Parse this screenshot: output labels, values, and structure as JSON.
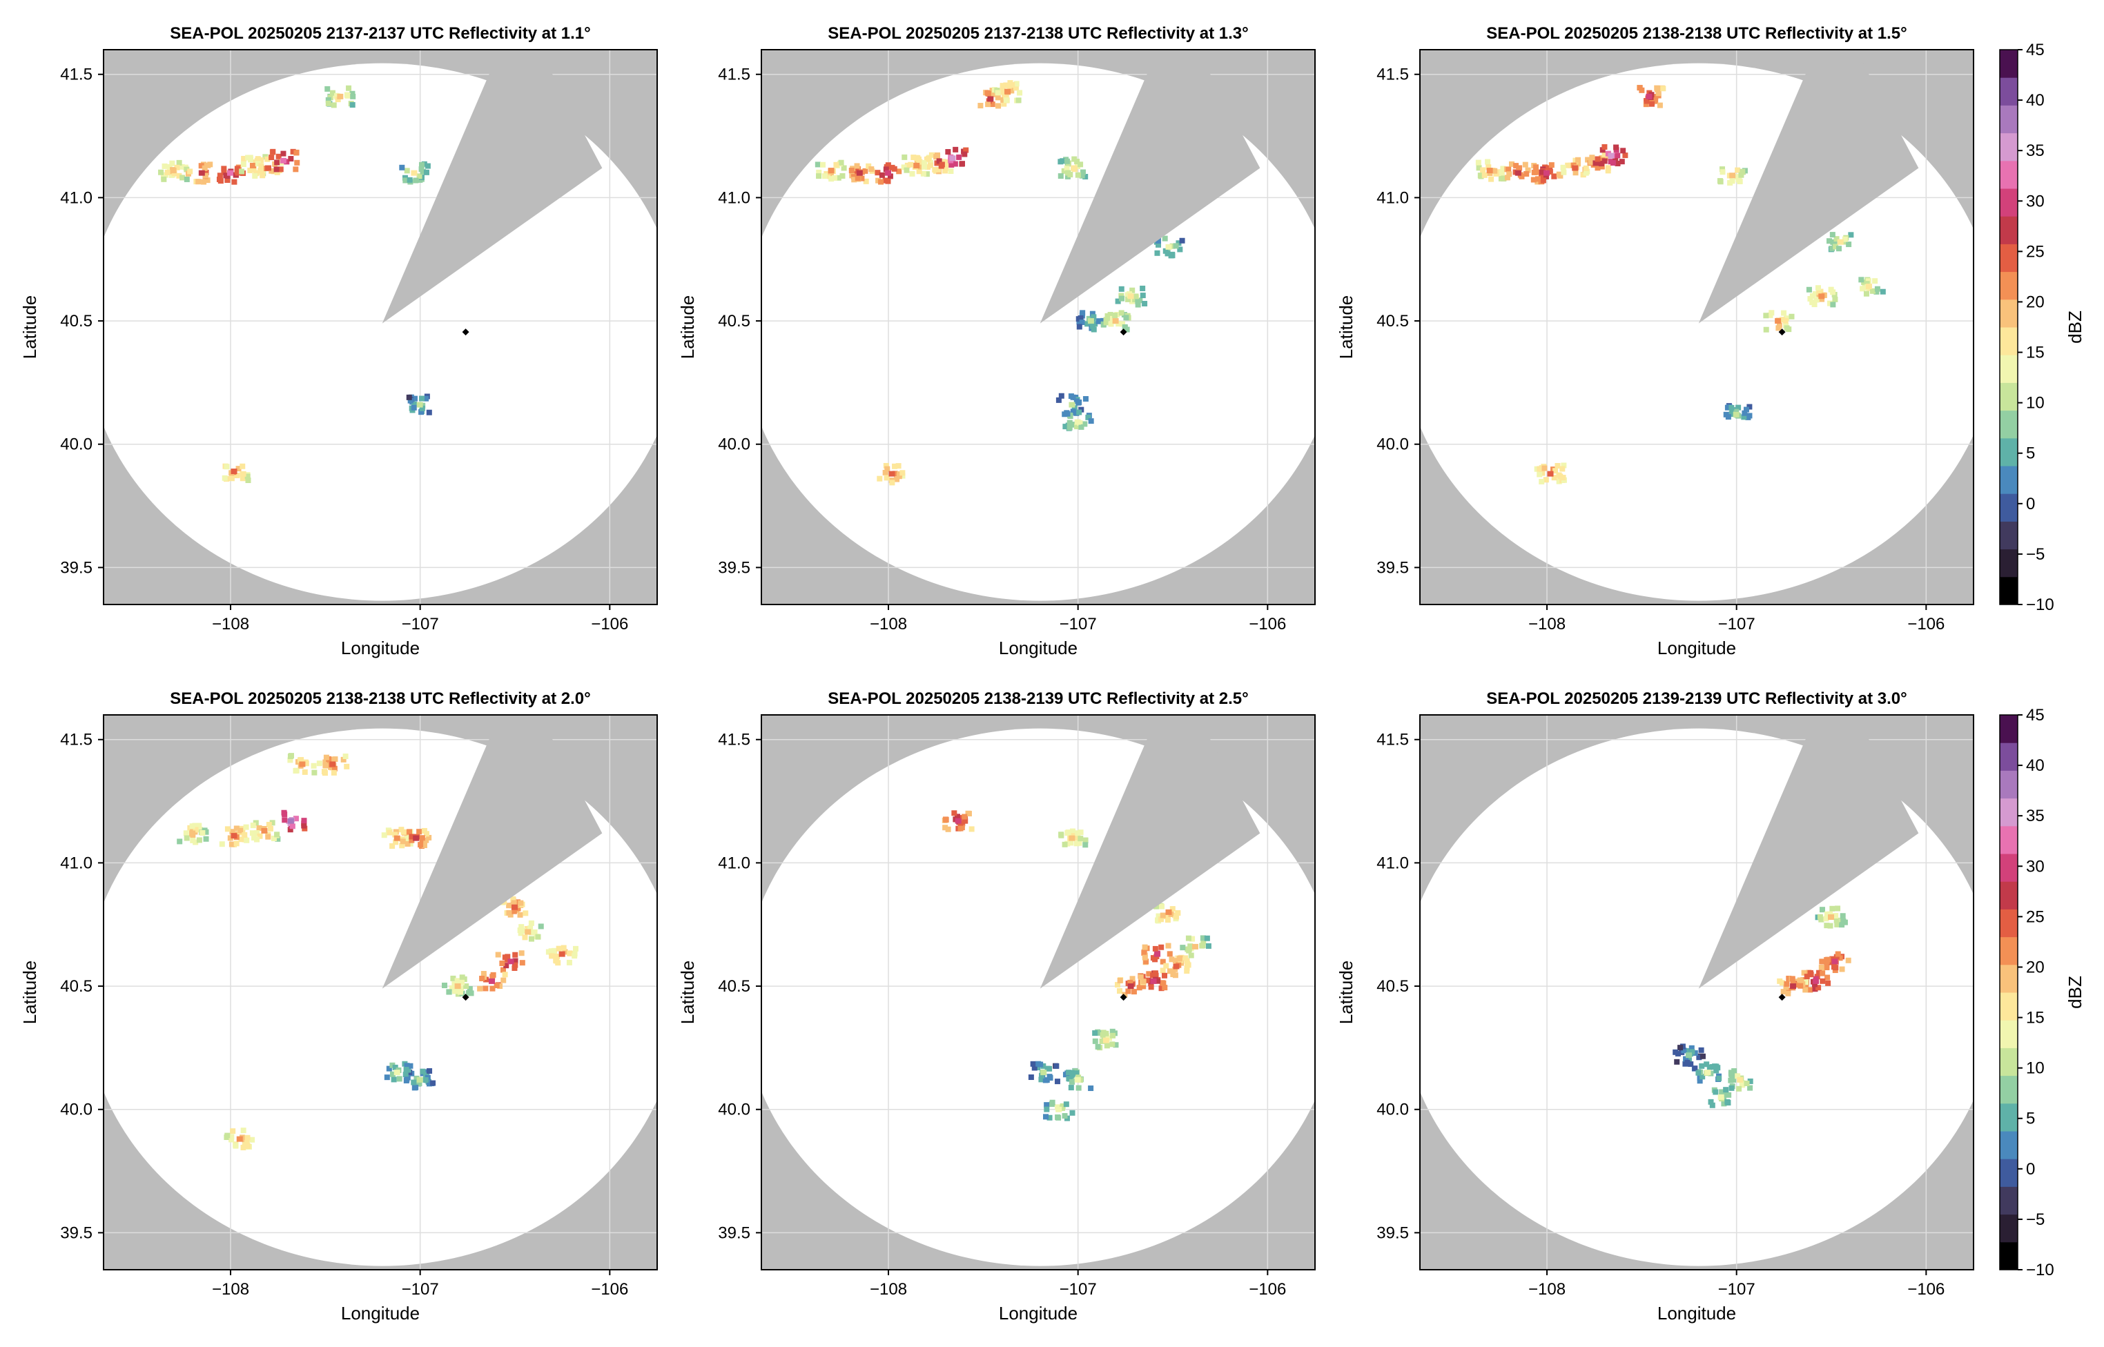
{
  "figure": {
    "colorbar_label": "dBZ",
    "colorbar_ticks": [
      -10,
      -5,
      0,
      5,
      10,
      15,
      20,
      25,
      30,
      35,
      40,
      45
    ],
    "colors": {
      "mask_gray": "#bcbcbc",
      "grid": "#dedede",
      "radar_marker": "#000000",
      "colormap": [
        "#000000",
        "#2a1f33",
        "#413a5e",
        "#3f5b9e",
        "#4a89bd",
        "#5fb2a8",
        "#93cfa3",
        "#c8e59b",
        "#f1f6b0",
        "#fde79b",
        "#f9c27b",
        "#f39055",
        "#e35e43",
        "#c23a4a",
        "#d2417a",
        "#e872b1",
        "#d59ad0",
        "#a979bd",
        "#7c4d9c",
        "#4a1150"
      ]
    },
    "radar_site": {
      "lon": -106.76,
      "lat": 40.455
    },
    "range_radius_deg": 1.09,
    "range_center": {
      "lon": -107.2,
      "lat": 40.455
    },
    "blocked_sector": [
      [
        -107.2,
        40.49
      ],
      [
        -106.62,
        41.53
      ],
      [
        -106.58,
        41.57
      ],
      [
        -106.35,
        41.57
      ],
      [
        -106.04,
        41.12
      ],
      [
        -107.2,
        40.49
      ]
    ]
  },
  "chart_data": [
    {
      "type": "heatmap",
      "title": "SEA-POL 20250205 2137-2137 UTC Reflectivity at 1.1°",
      "xlabel": "Longitude",
      "ylabel": "Latitude",
      "xlim": [
        -108.67,
        -105.75
      ],
      "ylim": [
        39.35,
        41.6
      ],
      "xticks": [
        "−108",
        "−107",
        "−106"
      ],
      "yticks": [
        "39.5",
        "40.0",
        "40.5",
        "41.0",
        "41.5"
      ],
      "grid": true,
      "echoes": [
        {
          "lon": -108.3,
          "lat": 41.11,
          "dbz": 20
        },
        {
          "lon": -108.15,
          "lat": 41.1,
          "dbz": 26
        },
        {
          "lon": -108.0,
          "lat": 41.1,
          "dbz": 32
        },
        {
          "lon": -107.88,
          "lat": 41.13,
          "dbz": 22
        },
        {
          "lon": -107.8,
          "lat": 41.12,
          "dbz": 24
        },
        {
          "lon": -107.72,
          "lat": 41.15,
          "dbz": 33
        },
        {
          "lon": -107.42,
          "lat": 41.41,
          "dbz": 18
        },
        {
          "lon": -107.98,
          "lat": 39.89,
          "dbz": 23
        },
        {
          "lon": -107.0,
          "lat": 40.16,
          "dbz": 10
        },
        {
          "lon": -107.03,
          "lat": 41.1,
          "dbz": 15
        }
      ]
    },
    {
      "type": "heatmap",
      "title": "SEA-POL 20250205 2137-2138 UTC Reflectivity at 1.3°",
      "xlabel": "Longitude",
      "ylabel": "Latitude",
      "xlim": [
        -108.67,
        -105.75
      ],
      "ylim": [
        39.35,
        41.6
      ],
      "xticks": [
        "−108",
        "−107",
        "−106"
      ],
      "yticks": [
        "39.5",
        "40.0",
        "40.5",
        "41.0",
        "41.5"
      ],
      "grid": true,
      "echoes": [
        {
          "lon": -108.3,
          "lat": 41.11,
          "dbz": 21
        },
        {
          "lon": -108.15,
          "lat": 41.1,
          "dbz": 27
        },
        {
          "lon": -108.0,
          "lat": 41.1,
          "dbz": 31
        },
        {
          "lon": -107.85,
          "lat": 41.13,
          "dbz": 22
        },
        {
          "lon": -107.74,
          "lat": 41.14,
          "dbz": 24
        },
        {
          "lon": -107.66,
          "lat": 41.16,
          "dbz": 36
        },
        {
          "lon": -107.46,
          "lat": 41.4,
          "dbz": 27
        },
        {
          "lon": -107.37,
          "lat": 41.43,
          "dbz": 22
        },
        {
          "lon": -107.02,
          "lat": 41.12,
          "dbz": 17
        },
        {
          "lon": -107.98,
          "lat": 39.88,
          "dbz": 24
        },
        {
          "lon": -107.03,
          "lat": 40.16,
          "dbz": 10
        },
        {
          "lon": -107.0,
          "lat": 40.09,
          "dbz": 14
        },
        {
          "lon": -106.93,
          "lat": 40.5,
          "dbz": 10
        },
        {
          "lon": -106.72,
          "lat": 40.6,
          "dbz": 16
        },
        {
          "lon": -106.52,
          "lat": 40.8,
          "dbz": 13
        },
        {
          "lon": -106.8,
          "lat": 40.5,
          "dbz": 18
        }
      ]
    },
    {
      "type": "heatmap",
      "title": "SEA-POL 20250205 2138-2138 UTC Reflectivity at 1.5°",
      "xlabel": "Longitude",
      "ylabel": "Latitude",
      "xlim": [
        -108.67,
        -105.75
      ],
      "ylim": [
        39.35,
        41.6
      ],
      "xticks": [
        "−108",
        "−107",
        "−106"
      ],
      "yticks": [
        "39.5",
        "40.0",
        "40.5",
        "41.0",
        "41.5"
      ],
      "grid": true,
      "echoes": [
        {
          "lon": -108.3,
          "lat": 41.11,
          "dbz": 22
        },
        {
          "lon": -108.15,
          "lat": 41.1,
          "dbz": 27
        },
        {
          "lon": -108.0,
          "lat": 41.1,
          "dbz": 30
        },
        {
          "lon": -107.85,
          "lat": 41.12,
          "dbz": 24
        },
        {
          "lon": -107.74,
          "lat": 41.14,
          "dbz": 26
        },
        {
          "lon": -107.66,
          "lat": 41.17,
          "dbz": 35
        },
        {
          "lon": -107.46,
          "lat": 41.41,
          "dbz": 29
        },
        {
          "lon": -107.02,
          "lat": 41.09,
          "dbz": 20
        },
        {
          "lon": -107.98,
          "lat": 39.88,
          "dbz": 24
        },
        {
          "lon": -107.0,
          "lat": 40.12,
          "dbz": 11
        },
        {
          "lon": -106.55,
          "lat": 40.6,
          "dbz": 21
        },
        {
          "lon": -106.3,
          "lat": 40.64,
          "dbz": 17
        },
        {
          "lon": -106.45,
          "lat": 40.82,
          "dbz": 16
        },
        {
          "lon": -106.78,
          "lat": 40.5,
          "dbz": 22
        }
      ]
    },
    {
      "type": "heatmap",
      "title": "SEA-POL 20250205 2138-2138 UTC Reflectivity at 2.0°",
      "xlabel": "Longitude",
      "ylabel": "Latitude",
      "xlim": [
        -108.67,
        -105.75
      ],
      "ylim": [
        39.35,
        41.6
      ],
      "xticks": [
        "−108",
        "−107",
        "−106"
      ],
      "yticks": [
        "39.5",
        "40.0",
        "40.5",
        "41.0",
        "41.5"
      ],
      "grid": true,
      "echoes": [
        {
          "lon": -108.2,
          "lat": 41.12,
          "dbz": 20
        },
        {
          "lon": -107.98,
          "lat": 41.11,
          "dbz": 24
        },
        {
          "lon": -107.82,
          "lat": 41.13,
          "dbz": 22
        },
        {
          "lon": -107.68,
          "lat": 41.17,
          "dbz": 37
        },
        {
          "lon": -107.62,
          "lat": 41.4,
          "dbz": 22
        },
        {
          "lon": -107.46,
          "lat": 41.4,
          "dbz": 25
        },
        {
          "lon": -107.12,
          "lat": 41.1,
          "dbz": 22
        },
        {
          "lon": -107.02,
          "lat": 41.1,
          "dbz": 28
        },
        {
          "lon": -106.5,
          "lat": 40.82,
          "dbz": 25
        },
        {
          "lon": -106.43,
          "lat": 40.72,
          "dbz": 20
        },
        {
          "lon": -106.52,
          "lat": 40.6,
          "dbz": 30
        },
        {
          "lon": -106.62,
          "lat": 40.52,
          "dbz": 29
        },
        {
          "lon": -106.25,
          "lat": 40.63,
          "dbz": 23
        },
        {
          "lon": -107.0,
          "lat": 40.12,
          "dbz": 11
        },
        {
          "lon": -107.12,
          "lat": 40.15,
          "dbz": 12
        },
        {
          "lon": -107.95,
          "lat": 39.88,
          "dbz": 22
        },
        {
          "lon": -106.8,
          "lat": 40.5,
          "dbz": 18
        }
      ]
    },
    {
      "type": "heatmap",
      "title": "SEA-POL 20250205 2138-2139 UTC Reflectivity at 2.5°",
      "xlabel": "Longitude",
      "ylabel": "Latitude",
      "xlim": [
        -108.67,
        -105.75
      ],
      "ylim": [
        39.35,
        41.6
      ],
      "xticks": [
        "−108",
        "−107",
        "−106"
      ],
      "yticks": [
        "39.5",
        "40.0",
        "40.5",
        "41.0",
        "41.5"
      ],
      "grid": true,
      "echoes": [
        {
          "lon": -107.63,
          "lat": 41.17,
          "dbz": 30
        },
        {
          "lon": -107.03,
          "lat": 41.1,
          "dbz": 19
        },
        {
          "lon": -106.52,
          "lat": 40.8,
          "dbz": 22
        },
        {
          "lon": -106.58,
          "lat": 40.63,
          "dbz": 30
        },
        {
          "lon": -106.48,
          "lat": 40.58,
          "dbz": 25
        },
        {
          "lon": -106.6,
          "lat": 40.52,
          "dbz": 31
        },
        {
          "lon": -106.72,
          "lat": 40.5,
          "dbz": 27
        },
        {
          "lon": -106.38,
          "lat": 40.66,
          "dbz": 18
        },
        {
          "lon": -107.0,
          "lat": 40.12,
          "dbz": 13
        },
        {
          "lon": -107.18,
          "lat": 40.15,
          "dbz": 10
        },
        {
          "lon": -107.1,
          "lat": 40.0,
          "dbz": 14
        },
        {
          "lon": -106.85,
          "lat": 40.28,
          "dbz": 17
        }
      ]
    },
    {
      "type": "heatmap",
      "title": "SEA-POL 20250205 2139-2139 UTC Reflectivity at 3.0°",
      "xlabel": "Longitude",
      "ylabel": "Latitude",
      "xlim": [
        -108.67,
        -105.75
      ],
      "ylim": [
        39.35,
        41.6
      ],
      "xticks": [
        "−108",
        "−107",
        "−106"
      ],
      "yticks": [
        "39.5",
        "40.0",
        "40.5",
        "41.0",
        "41.5"
      ],
      "grid": true,
      "echoes": [
        {
          "lon": -106.48,
          "lat": 40.6,
          "dbz": 29
        },
        {
          "lon": -106.58,
          "lat": 40.52,
          "dbz": 31
        },
        {
          "lon": -106.7,
          "lat": 40.5,
          "dbz": 26
        },
        {
          "lon": -106.5,
          "lat": 40.78,
          "dbz": 18
        },
        {
          "lon": -107.15,
          "lat": 40.15,
          "dbz": 12
        },
        {
          "lon": -107.25,
          "lat": 40.22,
          "dbz": 8
        },
        {
          "lon": -107.08,
          "lat": 40.05,
          "dbz": 14
        },
        {
          "lon": -106.98,
          "lat": 40.12,
          "dbz": 16
        }
      ]
    }
  ]
}
